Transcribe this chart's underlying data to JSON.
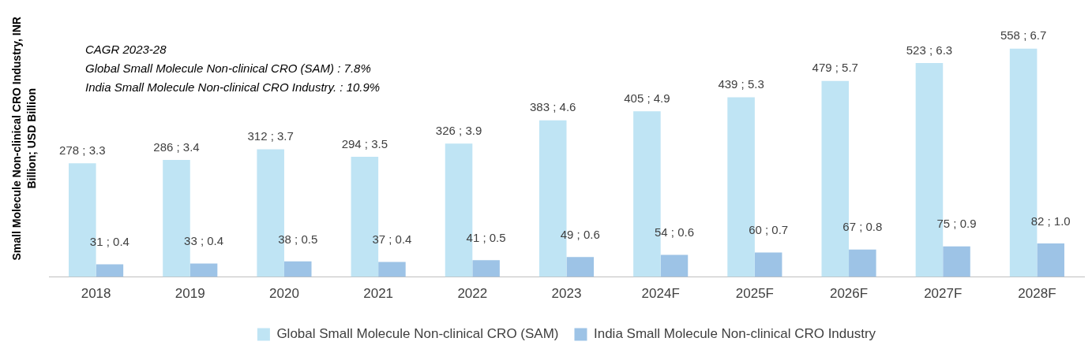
{
  "chart_data": {
    "type": "bar",
    "ylabel": "Small Molecule Non-clinical CRO Industry, INR Billion; USD Billion",
    "categories": [
      "2018",
      "2019",
      "2020",
      "2021",
      "2022",
      "2023",
      "2024F",
      "2025F",
      "2026F",
      "2027F",
      "2028F"
    ],
    "series": [
      {
        "name": "Global Small Molecule Non-clinical CRO (SAM)",
        "color": "#bfe4f4",
        "values": [
          278,
          286,
          312,
          294,
          326,
          383,
          405,
          439,
          479,
          523,
          558
        ],
        "value_labels": [
          "278 ; 3.3",
          "286 ; 3.4",
          "312 ; 3.7",
          "294 ; 3.5",
          "326 ; 3.9",
          "383 ; 4.6",
          "405 ; 4.9",
          "439 ; 5.3",
          "479 ; 5.7",
          "523 ; 6.3",
          "558 ; 6.7"
        ]
      },
      {
        "name": "India Small Molecule Non-clinical CRO Industry",
        "color": "#9dc3e6",
        "values": [
          31,
          33,
          38,
          37,
          41,
          49,
          54,
          60,
          67,
          75,
          82
        ],
        "value_labels": [
          "31 ; 0.4",
          "33 ; 0.4",
          "38 ; 0.5",
          "37 ; 0.4",
          "41 ; 0.5",
          "49 ; 0.6",
          "54 ; 0.6",
          "60 ; 0.7",
          "67 ; 0.8",
          "75 ; 0.9",
          "82 ; 1.0"
        ]
      }
    ],
    "annotations": [
      "CAGR 2023-28",
      "Global Small Molecule Non-clinical CRO (SAM) : 7.8%",
      "India Small Molecule Non-clinical CRO Industry. : 10.9%"
    ],
    "legend": "bottom",
    "grid": false,
    "tick_labels": "x"
  }
}
